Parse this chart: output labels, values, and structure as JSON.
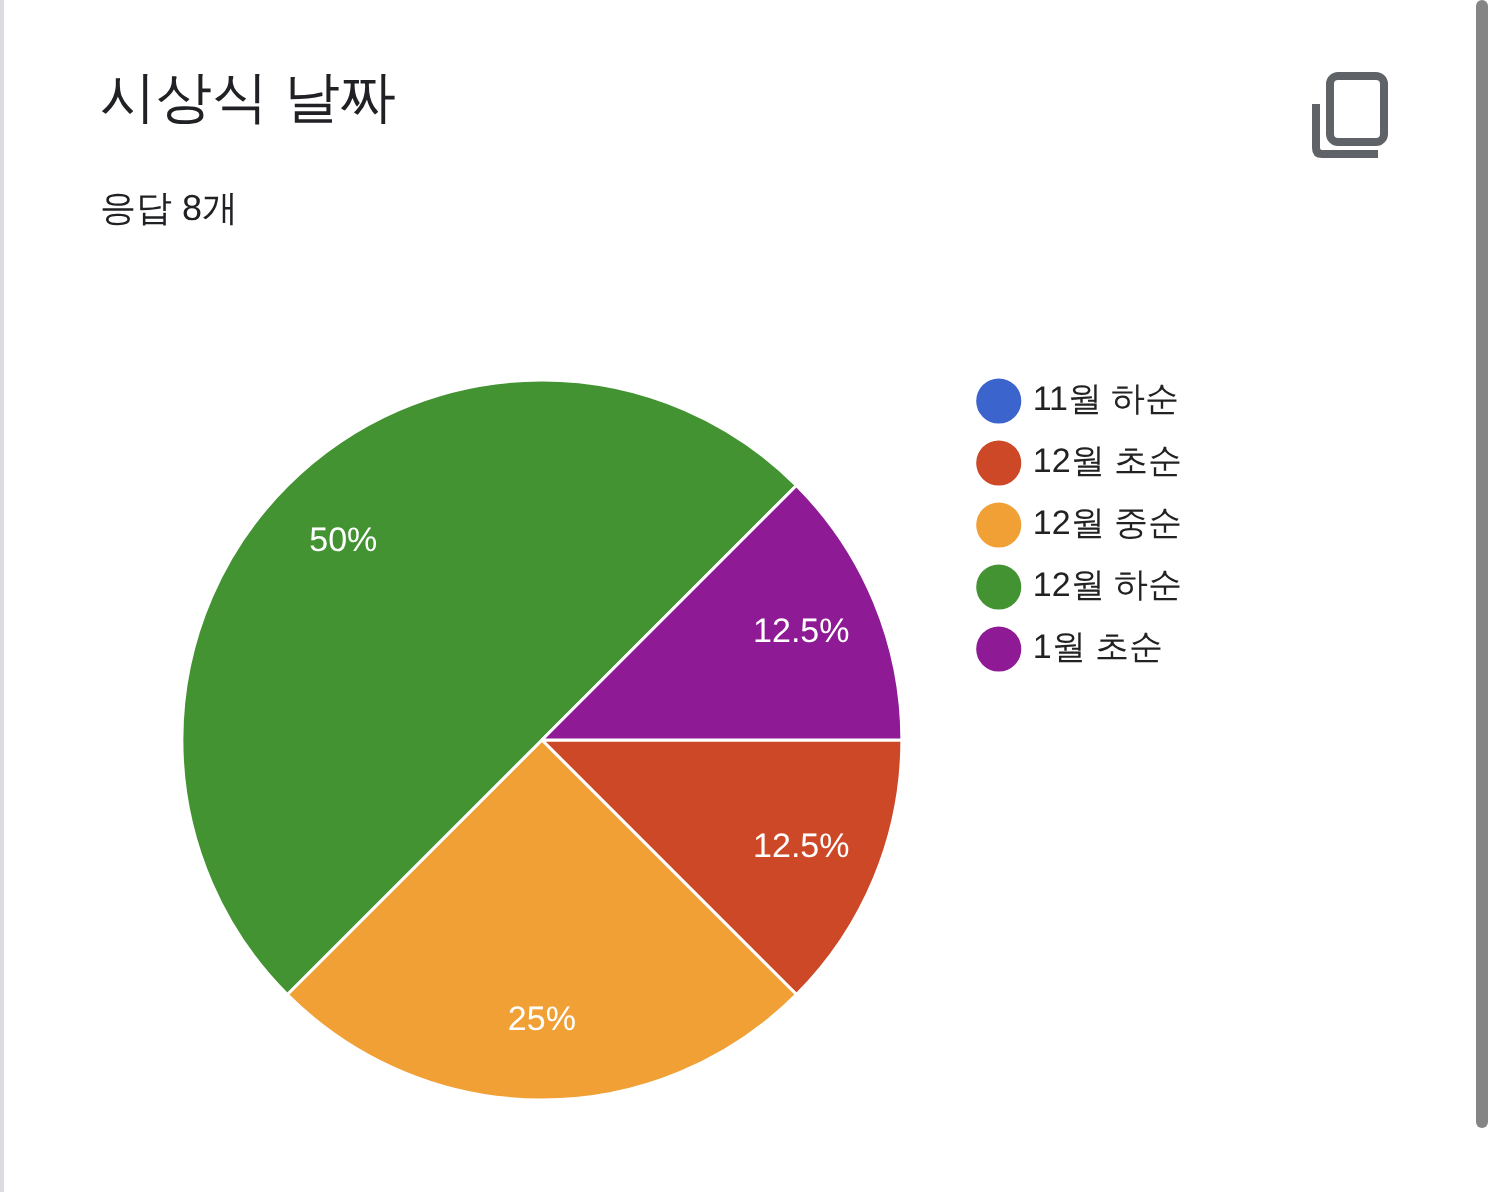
{
  "chart_data": {
    "type": "pie",
    "title": "시상식 날짜",
    "subtitle": "응답 8개",
    "categories": [
      "11월 하순",
      "12월 초순",
      "12월 중순",
      "12월 하순",
      "1월 초순"
    ],
    "values": [
      0,
      12.5,
      25,
      50,
      12.5
    ],
    "colors": [
      "#3b65cc",
      "#cc4827",
      "#f0a035",
      "#439332",
      "#8e1b95"
    ],
    "value_labels": [
      null,
      "12.5%",
      "25%",
      "50%",
      "12.5%"
    ],
    "legend": "top right"
  }
}
